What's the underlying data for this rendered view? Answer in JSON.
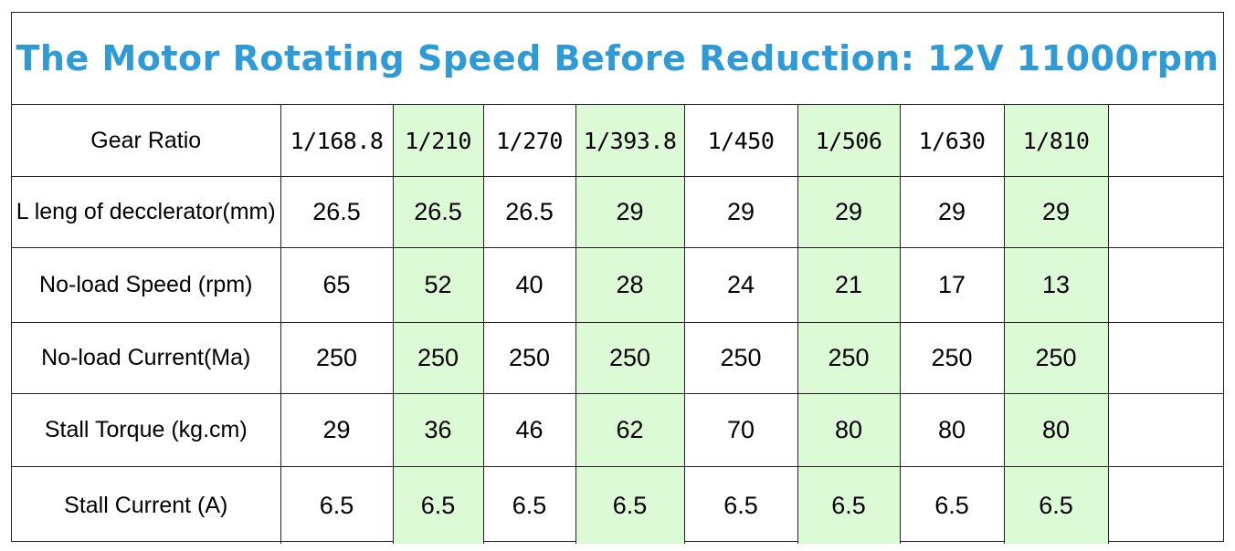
{
  "title": "The Motor Rotating Speed Before Reduction: 12V 11000rpm",
  "highlight_color": "#dcfad6",
  "title_color": "#2e9bd6",
  "rows": [
    {
      "label": "Gear Ratio",
      "values": [
        "1/168.8",
        "1/210",
        "1/270",
        "1/393.8",
        "1/450",
        "1/506",
        "1/630",
        "1/810"
      ]
    },
    {
      "label": "L leng of decclerator(mm)",
      "values": [
        "26.5",
        "26.5",
        "26.5",
        "29",
        "29",
        "29",
        "29",
        "29"
      ]
    },
    {
      "label": "No-load Speed (rpm)",
      "values": [
        "65",
        "52",
        "40",
        "28",
        "24",
        "21",
        "17",
        "13"
      ]
    },
    {
      "label": "No-load Current(Ma)",
      "values": [
        "250",
        "250",
        "250",
        "250",
        "250",
        "250",
        "250",
        "250"
      ]
    },
    {
      "label": "Stall Torque (kg.cm)",
      "values": [
        "29",
        "36",
        "46",
        "62",
        "70",
        "80",
        "80",
        "80"
      ]
    },
    {
      "label": "Stall Current (A)",
      "values": [
        "6.5",
        "6.5",
        "6.5",
        "6.5",
        "6.5",
        "6.5",
        "6.5",
        "6.5"
      ]
    }
  ]
}
